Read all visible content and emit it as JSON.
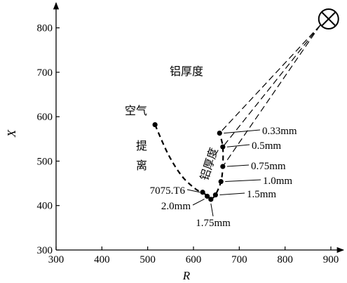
{
  "chart_data": {
    "type": "scatter",
    "xlabel": "R",
    "ylabel": "X",
    "xlim": [
      300,
      900
    ],
    "ylim": [
      300,
      850
    ],
    "x_ticks": [
      "300",
      "400",
      "500",
      "600",
      "700",
      "800",
      "900"
    ],
    "y_ticks": [
      "300",
      "400",
      "500",
      "600",
      "700",
      "800"
    ],
    "grid": false,
    "source_point": {
      "x": 895,
      "y": 820
    },
    "liftoff_curve": {
      "label_start": "空气",
      "label_mid": "提离",
      "points": [
        {
          "x": 516,
          "y": 582
        },
        {
          "x": 545,
          "y": 515
        },
        {
          "x": 575,
          "y": 466
        },
        {
          "x": 605,
          "y": 437
        },
        {
          "x": 620,
          "y": 430
        },
        {
          "x": 630,
          "y": 421
        },
        {
          "x": 638,
          "y": 414
        }
      ]
    },
    "thickness_curve": {
      "label_upper": "铝厚度",
      "label_along": "铝厚度",
      "points": [
        {
          "x": 638,
          "y": 414
        },
        {
          "x": 648,
          "y": 424
        },
        {
          "x": 660,
          "y": 454
        },
        {
          "x": 664,
          "y": 488
        },
        {
          "x": 664,
          "y": 532
        },
        {
          "x": 657,
          "y": 563
        }
      ]
    },
    "points": [
      {
        "label": "0.33mm",
        "x": 657,
        "y": 563
      },
      {
        "label": "0.5mm",
        "x": 664,
        "y": 532
      },
      {
        "label": "0.75mm",
        "x": 664,
        "y": 488
      },
      {
        "label": "1.0mm",
        "x": 660,
        "y": 454
      },
      {
        "label": "1.5mm",
        "x": 648,
        "y": 424
      },
      {
        "label": "1.75mm",
        "x": 638,
        "y": 414
      },
      {
        "label": "2.0mm",
        "x": 630,
        "y": 421
      },
      {
        "label": "7075.T6",
        "x": 620,
        "y": 430
      },
      {
        "label": "",
        "x": 516,
        "y": 582
      }
    ]
  }
}
